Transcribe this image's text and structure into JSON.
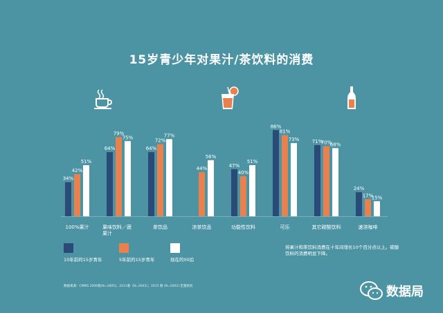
{
  "title": "15岁青少年对果汁/茶饮料的消费",
  "icons": [
    "coffee-cup-icon",
    "juice-glass-icon",
    "soda-bottle-icon"
  ],
  "colors": {
    "background": "#4c94a4",
    "series": [
      "#2a4a78",
      "#e9814e",
      "#ffffff"
    ],
    "text": "#ffffff"
  },
  "chart_data": {
    "type": "bar",
    "categories": [
      "100%果汁",
      "果味饮料／蔬果汁",
      "茶饮品",
      "凉茶饮品",
      "功能性饮料",
      "可乐",
      "其它碳酸饮料",
      "速溶咖啡"
    ],
    "category_lines": [
      [
        "100%果汁"
      ],
      [
        "果味饮料／蔬",
        "果汁"
      ],
      [
        "茶饮品"
      ],
      [
        "凉茶饮品"
      ],
      [
        "功能性饮料"
      ],
      [
        "可乐"
      ],
      [
        "其它碳酸饮料"
      ],
      [
        "速溶咖啡"
      ]
    ],
    "series": [
      {
        "name": "10年前的15岁青年",
        "values": [
          34,
          64,
          64,
          null,
          47,
          86,
          71,
          24
        ],
        "labels": [
          "34%",
          "64%",
          "64%",
          "",
          "47%",
          "86%",
          "71%",
          "24%"
        ]
      },
      {
        "name": "5年前的15岁青年",
        "values": [
          42,
          79,
          72,
          44,
          40,
          81,
          70,
          17
        ],
        "labels": [
          "42%",
          "79%",
          "72%",
          "44%",
          "40%",
          "81%",
          "70%",
          "17%"
        ]
      },
      {
        "name": "现在的00后",
        "values": [
          51,
          75,
          77,
          56,
          51,
          73,
          68,
          15
        ],
        "labels": [
          "51%",
          "75%",
          "77%",
          "56%",
          "51%",
          "73%",
          "68%",
          "15%"
        ]
      }
    ],
    "ylim": [
      0,
      100
    ],
    "grid": false,
    "legend_position": "bottom-left"
  },
  "note": "将果汁和茶饮料消费在十年间增长10个百分点以上。碳酸饮料的消费明显下降。",
  "source": "数据来源：CMMS 2006春(N=1805)；2011春（N=2043）；2015 春 (N=2002) 定量研究",
  "brand": "数据局"
}
